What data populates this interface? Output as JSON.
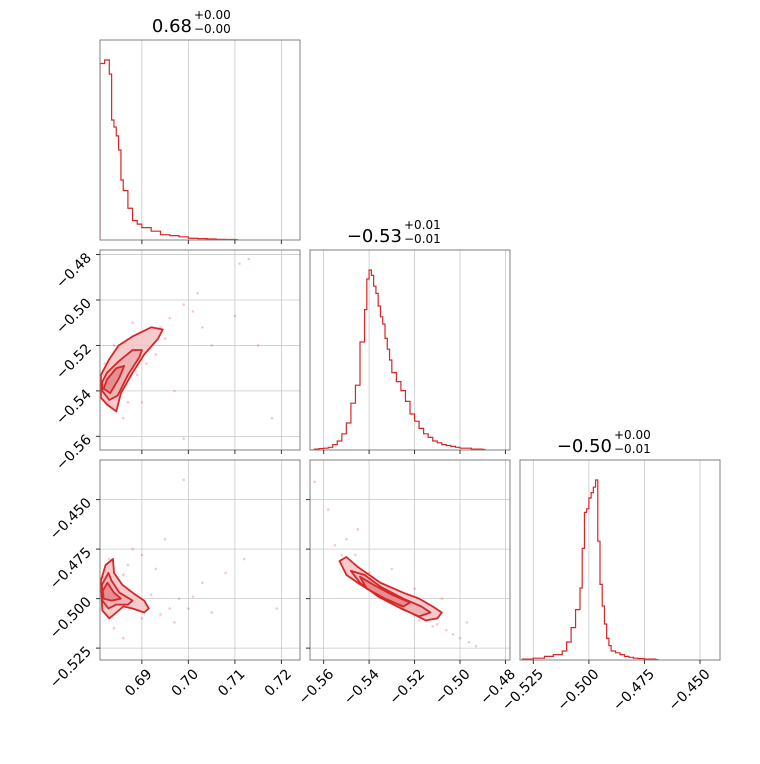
{
  "accent_color": "#d62728",
  "fill_color": "#f4c2c4",
  "grid_color": "#c8c8c8",
  "chart_data": {
    "type": "corner",
    "parameters": [
      "p0",
      "p1",
      "p2"
    ],
    "titles": [
      {
        "value": "0.68",
        "plus": "+0.00",
        "minus": "−0.00"
      },
      {
        "value": "−0.53",
        "plus": "+0.01",
        "minus": "−0.01"
      },
      {
        "value": "−0.50",
        "plus": "+0.00",
        "minus": "−0.01"
      }
    ],
    "axes": {
      "p0": {
        "range": [
          0.681,
          0.724
        ],
        "ticks": [
          0.69,
          0.7,
          0.71,
          0.72
        ],
        "labels": [
          "0.69",
          "0.70",
          "0.71",
          "0.72"
        ]
      },
      "p1": {
        "range": [
          -0.566,
          -0.478
        ],
        "ticks": [
          -0.56,
          -0.54,
          -0.52,
          -0.5,
          -0.48
        ],
        "labels": [
          "−0.56",
          "−0.54",
          "−0.52",
          "−0.50",
          "−0.48"
        ]
      },
      "p2": {
        "range": [
          -0.531,
          -0.441
        ],
        "ticks": [
          -0.525,
          -0.5,
          -0.475,
          -0.45
        ],
        "labels": [
          "−0.525",
          "−0.500",
          "−0.475",
          "−0.450"
        ]
      },
      "p2_row": {
        "range": [
          -0.531,
          -0.43
        ],
        "ticks": [
          -0.525,
          -0.5,
          -0.475,
          -0.45
        ],
        "labels": [
          "−0.525",
          "−0.500",
          "−0.475",
          "−0.450"
        ]
      }
    },
    "histograms": [
      {
        "param": "p0",
        "x": [
          0.681,
          0.682,
          0.683,
          0.6835,
          0.684,
          0.6845,
          0.685,
          0.6855,
          0.686,
          0.687,
          0.688,
          0.689,
          0.69,
          0.692,
          0.694,
          0.696,
          0.698,
          0.7,
          0.702,
          0.704,
          0.706,
          0.708,
          0.71
        ],
        "y": [
          1.0,
          1.02,
          0.94,
          0.68,
          0.64,
          0.59,
          0.51,
          0.34,
          0.28,
          0.18,
          0.11,
          0.09,
          0.07,
          0.05,
          0.03,
          0.025,
          0.018,
          0.01,
          0.008,
          0.006,
          0.004,
          0.003,
          0.002
        ]
      },
      {
        "param": "p1",
        "x": [
          -0.566,
          -0.564,
          -0.562,
          -0.56,
          -0.558,
          -0.556,
          -0.554,
          -0.552,
          -0.55,
          -0.548,
          -0.546,
          -0.544,
          -0.542,
          -0.541,
          -0.54,
          -0.539,
          -0.538,
          -0.537,
          -0.536,
          -0.535,
          -0.534,
          -0.533,
          -0.532,
          -0.531,
          -0.53,
          -0.528,
          -0.526,
          -0.524,
          -0.522,
          -0.52,
          -0.518,
          -0.516,
          -0.514,
          -0.512,
          -0.51,
          -0.508,
          -0.506,
          -0.504,
          -0.502,
          -0.5,
          -0.495,
          -0.49
        ],
        "y": [
          0.0,
          0.005,
          0.008,
          0.01,
          0.015,
          0.03,
          0.05,
          0.09,
          0.15,
          0.26,
          0.36,
          0.6,
          0.78,
          0.95,
          1.0,
          0.97,
          0.91,
          0.87,
          0.8,
          0.74,
          0.7,
          0.62,
          0.56,
          0.5,
          0.43,
          0.38,
          0.33,
          0.27,
          0.2,
          0.16,
          0.12,
          0.09,
          0.07,
          0.05,
          0.04,
          0.03,
          0.025,
          0.02,
          0.015,
          0.01,
          0.005,
          0.003
        ]
      },
      {
        "param": "p2",
        "x": [
          -0.53,
          -0.525,
          -0.52,
          -0.516,
          -0.512,
          -0.51,
          -0.508,
          -0.506,
          -0.504,
          -0.503,
          -0.502,
          -0.501,
          -0.5,
          -0.499,
          -0.498,
          -0.497,
          -0.496,
          -0.495,
          -0.494,
          -0.493,
          -0.492,
          -0.491,
          -0.49,
          -0.488,
          -0.486,
          -0.484,
          -0.482,
          -0.48,
          -0.478,
          -0.475,
          -0.47
        ],
        "y": [
          0.005,
          0.01,
          0.02,
          0.03,
          0.05,
          0.1,
          0.18,
          0.28,
          0.4,
          0.62,
          0.82,
          0.84,
          0.9,
          0.93,
          0.96,
          1.0,
          0.66,
          0.42,
          0.3,
          0.2,
          0.12,
          0.08,
          0.05,
          0.04,
          0.03,
          0.02,
          0.015,
          0.01,
          0.008,
          0.005,
          0.002
        ]
      }
    ],
    "scatter_2d": [
      {
        "x_param": "p0",
        "y_param": "p1",
        "points": [
          [
            0.683,
            -0.54
          ],
          [
            0.684,
            -0.535
          ],
          [
            0.685,
            -0.53
          ],
          [
            0.686,
            -0.527
          ],
          [
            0.687,
            -0.524
          ],
          [
            0.688,
            -0.521
          ],
          [
            0.69,
            -0.518
          ],
          [
            0.692,
            -0.514
          ],
          [
            0.694,
            -0.512
          ],
          [
            0.696,
            -0.508
          ],
          [
            0.699,
            -0.502
          ],
          [
            0.702,
            -0.497
          ],
          [
            0.705,
            -0.52
          ],
          [
            0.711,
            -0.484
          ],
          [
            0.713,
            -0.482
          ],
          [
            0.71,
            -0.507
          ],
          [
            0.684,
            -0.547
          ],
          [
            0.682,
            -0.544
          ],
          [
            0.689,
            -0.533
          ],
          [
            0.691,
            -0.528
          ],
          [
            0.686,
            -0.552
          ],
          [
            0.697,
            -0.54
          ],
          [
            0.699,
            -0.561
          ],
          [
            0.715,
            -0.52
          ],
          [
            0.718,
            -0.552
          ],
          [
            0.688,
            -0.51
          ],
          [
            0.684,
            -0.52
          ],
          [
            0.693,
            -0.524
          ],
          [
            0.695,
            -0.517
          ],
          [
            0.701,
            -0.505
          ],
          [
            0.703,
            -0.512
          ],
          [
            0.687,
            -0.545
          ],
          [
            0.69,
            -0.545
          ],
          [
            0.682,
            -0.528
          ]
        ]
      },
      {
        "x_param": "p0",
        "y_param": "p2",
        "points": [
          [
            0.682,
            -0.493
          ],
          [
            0.683,
            -0.498
          ],
          [
            0.684,
            -0.502
          ],
          [
            0.685,
            -0.495
          ],
          [
            0.686,
            -0.488
          ],
          [
            0.687,
            -0.483
          ],
          [
            0.688,
            -0.505
          ],
          [
            0.689,
            -0.5
          ],
          [
            0.69,
            -0.51
          ],
          [
            0.691,
            -0.505
          ],
          [
            0.692,
            -0.498
          ],
          [
            0.694,
            -0.508
          ],
          [
            0.696,
            -0.505
          ],
          [
            0.698,
            -0.5
          ],
          [
            0.7,
            -0.505
          ],
          [
            0.703,
            -0.492
          ],
          [
            0.708,
            -0.487
          ],
          [
            0.712,
            -0.48
          ],
          [
            0.719,
            -0.505
          ],
          [
            0.699,
            -0.44
          ],
          [
            0.688,
            -0.475
          ],
          [
            0.684,
            -0.515
          ],
          [
            0.686,
            -0.52
          ],
          [
            0.69,
            -0.478
          ],
          [
            0.693,
            -0.485
          ],
          [
            0.697,
            -0.512
          ],
          [
            0.701,
            -0.499
          ],
          [
            0.705,
            -0.507
          ],
          [
            0.683,
            -0.48
          ],
          [
            0.695,
            -0.47
          ]
        ]
      },
      {
        "x_param": "p1",
        "y_param": "p2",
        "points": [
          [
            -0.564,
            -0.441
          ],
          [
            -0.555,
            -0.473
          ],
          [
            -0.552,
            -0.478
          ],
          [
            -0.55,
            -0.47
          ],
          [
            -0.548,
            -0.482
          ],
          [
            -0.546,
            -0.478
          ],
          [
            -0.544,
            -0.486
          ],
          [
            -0.542,
            -0.49
          ],
          [
            -0.54,
            -0.487
          ],
          [
            -0.538,
            -0.492
          ],
          [
            -0.536,
            -0.494
          ],
          [
            -0.534,
            -0.497
          ],
          [
            -0.532,
            -0.499
          ],
          [
            -0.53,
            -0.5
          ],
          [
            -0.528,
            -0.503
          ],
          [
            -0.526,
            -0.502
          ],
          [
            -0.524,
            -0.505
          ],
          [
            -0.522,
            -0.506
          ],
          [
            -0.52,
            -0.508
          ],
          [
            -0.518,
            -0.511
          ],
          [
            -0.515,
            -0.511
          ],
          [
            -0.512,
            -0.514
          ],
          [
            -0.51,
            -0.513
          ],
          [
            -0.506,
            -0.516
          ],
          [
            -0.503,
            -0.518
          ],
          [
            -0.5,
            -0.52
          ],
          [
            -0.496,
            -0.522
          ],
          [
            -0.493,
            -0.524
          ],
          [
            -0.558,
            -0.455
          ],
          [
            -0.545,
            -0.465
          ],
          [
            -0.53,
            -0.485
          ],
          [
            -0.52,
            -0.495
          ],
          [
            -0.508,
            -0.5
          ],
          [
            -0.497,
            -0.512
          ]
        ]
      }
    ],
    "contours_2d": [
      {
        "x_param": "p0",
        "y_param": "p1",
        "levels": [
          [
            [
              0.6812,
              -0.543
            ],
            [
              0.6825,
              -0.546
            ],
            [
              0.6845,
              -0.549
            ],
            [
              0.6855,
              -0.541
            ],
            [
              0.688,
              -0.532
            ],
            [
              0.6905,
              -0.524
            ],
            [
              0.6935,
              -0.517
            ],
            [
              0.6945,
              -0.513
            ],
            [
              0.692,
              -0.512
            ],
            [
              0.688,
              -0.516
            ],
            [
              0.685,
              -0.52
            ],
            [
              0.683,
              -0.526
            ],
            [
              0.6812,
              -0.533
            ]
          ],
          [
            [
              0.6815,
              -0.54
            ],
            [
              0.683,
              -0.544
            ],
            [
              0.6848,
              -0.542
            ],
            [
              0.687,
              -0.533
            ],
            [
              0.6895,
              -0.525
            ],
            [
              0.69,
              -0.522
            ],
            [
              0.688,
              -0.522
            ],
            [
              0.685,
              -0.527
            ],
            [
              0.6825,
              -0.532
            ],
            [
              0.6815,
              -0.536
            ]
          ],
          [
            [
              0.6818,
              -0.539
            ],
            [
              0.6832,
              -0.541
            ],
            [
              0.6852,
              -0.534
            ],
            [
              0.6862,
              -0.529
            ],
            [
              0.6845,
              -0.53
            ],
            [
              0.6825,
              -0.535
            ]
          ]
        ]
      },
      {
        "x_param": "p0",
        "y_param": "p2",
        "levels": [
          [
            [
              0.6812,
              -0.491
            ],
            [
              0.6822,
              -0.483
            ],
            [
              0.6838,
              -0.48
            ],
            [
              0.684,
              -0.487
            ],
            [
              0.6858,
              -0.493
            ],
            [
              0.688,
              -0.497
            ],
            [
              0.6905,
              -0.501
            ],
            [
              0.6915,
              -0.505
            ],
            [
              0.6905,
              -0.507
            ],
            [
              0.688,
              -0.505
            ],
            [
              0.686,
              -0.504
            ],
            [
              0.6845,
              -0.507
            ],
            [
              0.683,
              -0.51
            ],
            [
              0.6815,
              -0.506
            ]
          ],
          [
            [
              0.6814,
              -0.493
            ],
            [
              0.6828,
              -0.487
            ],
            [
              0.6835,
              -0.491
            ],
            [
              0.6852,
              -0.497
            ],
            [
              0.688,
              -0.501
            ],
            [
              0.687,
              -0.503
            ],
            [
              0.6845,
              -0.503
            ],
            [
              0.6828,
              -0.505
            ],
            [
              0.6815,
              -0.501
            ]
          ],
          [
            [
              0.6816,
              -0.496
            ],
            [
              0.6826,
              -0.492
            ],
            [
              0.684,
              -0.497
            ],
            [
              0.6855,
              -0.5
            ],
            [
              0.6835,
              -0.501
            ],
            [
              0.6818,
              -0.5
            ]
          ]
        ]
      },
      {
        "x_param": "p1",
        "y_param": "p2",
        "levels": [
          [
            [
              -0.553,
              -0.481
            ],
            [
              -0.55,
              -0.479
            ],
            [
              -0.545,
              -0.484
            ],
            [
              -0.54,
              -0.488
            ],
            [
              -0.535,
              -0.492
            ],
            [
              -0.525,
              -0.497
            ],
            [
              -0.518,
              -0.5
            ],
            [
              -0.512,
              -0.504
            ],
            [
              -0.508,
              -0.507
            ],
            [
              -0.51,
              -0.51
            ],
            [
              -0.515,
              -0.511
            ],
            [
              -0.522,
              -0.507
            ],
            [
              -0.53,
              -0.502
            ],
            [
              -0.538,
              -0.497
            ],
            [
              -0.545,
              -0.492
            ],
            [
              -0.55,
              -0.488
            ]
          ],
          [
            [
              -0.548,
              -0.486
            ],
            [
              -0.542,
              -0.488
            ],
            [
              -0.535,
              -0.494
            ],
            [
              -0.525,
              -0.5
            ],
            [
              -0.517,
              -0.504
            ],
            [
              -0.513,
              -0.507
            ],
            [
              -0.518,
              -0.509
            ],
            [
              -0.526,
              -0.505
            ],
            [
              -0.536,
              -0.499
            ],
            [
              -0.544,
              -0.492
            ]
          ],
          [
            [
              -0.544,
              -0.489
            ],
            [
              -0.538,
              -0.493
            ],
            [
              -0.53,
              -0.498
            ],
            [
              -0.522,
              -0.502
            ],
            [
              -0.525,
              -0.504
            ],
            [
              -0.533,
              -0.5
            ],
            [
              -0.541,
              -0.495
            ]
          ]
        ]
      }
    ]
  }
}
